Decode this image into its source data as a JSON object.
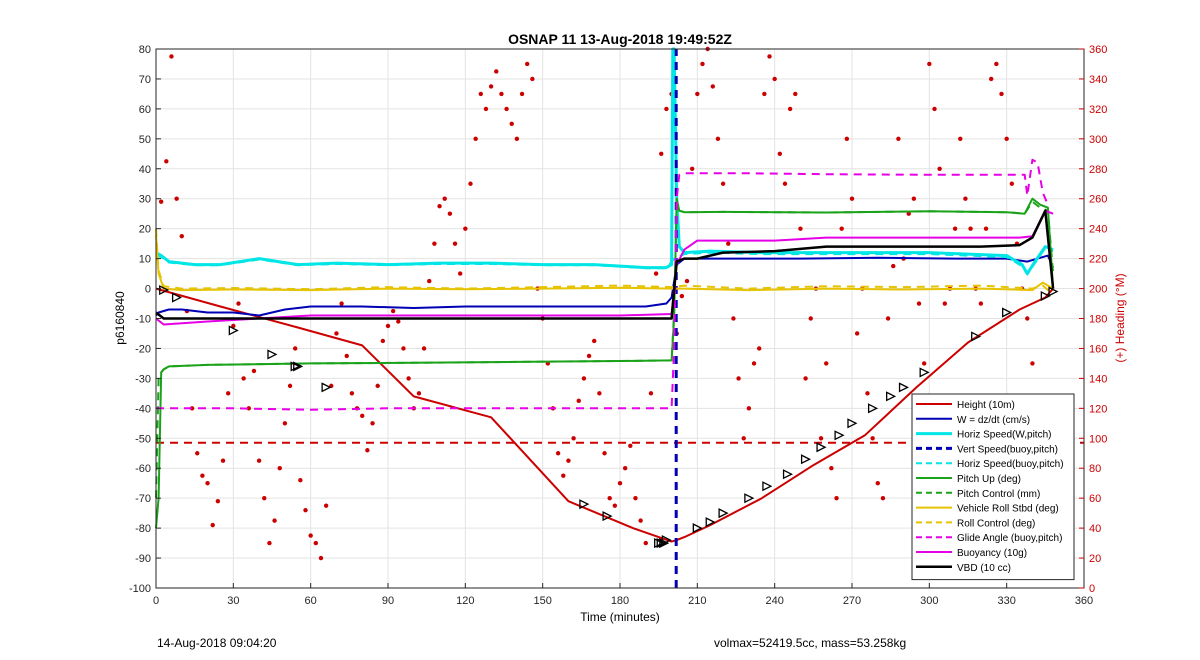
{
  "chart_data": {
    "type": "line",
    "title": "OSNAP 11 13-Aug-2018 19:49:52Z",
    "xlabel": "Time (minutes)",
    "ylabel_left": "p6160840",
    "ylabel_right": "(+) Heading (°M)",
    "xlim": [
      0,
      360
    ],
    "ylim_left": [
      -100,
      80
    ],
    "ylim_right": [
      0,
      360
    ],
    "x_ticks": [
      0,
      30,
      60,
      90,
      120,
      150,
      180,
      210,
      240,
      270,
      300,
      330,
      360
    ],
    "y_ticks_left": [
      -100,
      -90,
      -80,
      -70,
      -60,
      -50,
      -40,
      -30,
      -20,
      -10,
      0,
      10,
      20,
      30,
      40,
      50,
      60,
      70,
      80
    ],
    "y_ticks_right": [
      0,
      20,
      40,
      60,
      80,
      100,
      120,
      140,
      160,
      180,
      200,
      220,
      240,
      260,
      280,
      300,
      320,
      340,
      360
    ],
    "grid": true,
    "legend_position": "bottom-right",
    "series": [
      {
        "name": "Height (10m)",
        "color": "#cc0000",
        "style": "solid",
        "width": 2,
        "x": [
          0,
          25,
          55,
          80,
          100,
          130,
          160,
          185,
          200,
          202,
          205,
          215,
          235,
          255,
          275,
          295,
          315,
          335,
          345,
          348
        ],
        "y": [
          0,
          -6,
          -13,
          -19,
          -36,
          -43,
          -71,
          -80,
          -84.5,
          -84,
          -83,
          -79,
          -70,
          -59,
          -49,
          -33,
          -18,
          -7,
          -3,
          0
        ]
      },
      {
        "name": "W = dz/dt (cm/s)",
        "color": "#0000b4",
        "style": "solid",
        "width": 2,
        "x": [
          0,
          1,
          5,
          10,
          20,
          30,
          40,
          50,
          60,
          80,
          100,
          120,
          140,
          160,
          180,
          190,
          198,
          200,
          202,
          205,
          215,
          230,
          250,
          280,
          310,
          330,
          338,
          342,
          346,
          348
        ],
        "y": [
          -9,
          -8,
          -7,
          -7,
          -8,
          -8,
          -9,
          -7,
          -6,
          -6,
          -6.5,
          -6,
          -6,
          -6,
          -6,
          -6,
          -5,
          -3,
          8,
          10,
          10,
          10,
          10,
          10.3,
          10,
          10,
          9,
          10,
          11,
          7
        ]
      },
      {
        "name": "Horiz Speed(W,pitch)",
        "color": "#00e6e6",
        "style": "solid",
        "width": 3,
        "x": [
          0,
          2,
          5,
          15,
          25,
          40,
          55,
          70,
          90,
          110,
          130,
          150,
          170,
          190,
          198,
          200,
          200.5,
          201,
          202,
          203,
          205,
          215,
          235,
          255,
          275,
          300,
          330,
          336,
          338,
          341,
          345,
          348
        ],
        "y": [
          12,
          11,
          9,
          8,
          8,
          10,
          8,
          8.5,
          8,
          8.5,
          8.5,
          8,
          8,
          7,
          7,
          8,
          80,
          80,
          30,
          14,
          12,
          12.5,
          12,
          12,
          12,
          12,
          11,
          8,
          5,
          9,
          14,
          13
        ]
      },
      {
        "name": "Vert Speed(buoy,pitch)",
        "color": "#0000b4",
        "style": "dashed",
        "width": 3,
        "x": [
          201.8,
          201.8
        ],
        "y": [
          -100,
          80
        ]
      },
      {
        "name": "Horiz Speed(buoy,pitch)",
        "color": "#00e6e6",
        "style": "dashed",
        "width": 2,
        "x": [
          0,
          2,
          5,
          15,
          25,
          40,
          55,
          70,
          90,
          110,
          130,
          150,
          170,
          190,
          198,
          201,
          205,
          215,
          235,
          255,
          275,
          300,
          330,
          336,
          338,
          341,
          345,
          348
        ],
        "y": [
          11,
          10.5,
          8.7,
          7.8,
          7.8,
          9.7,
          7.8,
          8.2,
          7.8,
          8.2,
          8.2,
          7.8,
          7.8,
          6.8,
          6.8,
          10,
          11.5,
          12,
          11.5,
          11.5,
          11.5,
          11.5,
          10.5,
          7.5,
          4.7,
          8.5,
          13.5,
          12.5
        ]
      },
      {
        "name": "Pitch Up (deg)",
        "color": "#1aa31a",
        "style": "solid",
        "width": 2,
        "x": [
          0,
          1,
          2,
          3,
          5,
          20,
          60,
          100,
          140,
          180,
          200,
          201,
          202,
          203,
          205,
          220,
          260,
          300,
          330,
          337,
          340,
          343,
          346,
          348
        ],
        "y": [
          -80,
          -70,
          -28,
          -27,
          -26,
          -25.5,
          -25,
          -24.8,
          -24.5,
          -24.2,
          -24,
          -10,
          30,
          26,
          25.5,
          25.6,
          25.4,
          25.8,
          25.5,
          25,
          30,
          28,
          27,
          0
        ]
      },
      {
        "name": "Pitch Control (mm)",
        "color": "#1aa31a",
        "style": "dashed",
        "width": 2,
        "x": [
          0,
          1,
          2,
          3,
          5,
          20,
          60,
          100,
          140,
          180,
          200,
          201,
          202,
          203,
          205,
          220,
          260,
          300,
          330,
          337,
          340,
          343,
          346,
          348
        ],
        "y": [
          -70,
          -30,
          -28,
          -27,
          -26,
          -25.5,
          -25,
          -24.8,
          -24.5,
          -24.2,
          -24,
          -8,
          28,
          26,
          25.5,
          25.6,
          25.4,
          25.8,
          25.5,
          25,
          29,
          27,
          26,
          5
        ]
      },
      {
        "name": "Vehicle Roll Stbd (deg)",
        "color": "#e6c300",
        "style": "solid",
        "width": 2,
        "x": [
          0,
          1,
          3,
          10,
          30,
          60,
          90,
          120,
          150,
          180,
          200,
          205,
          230,
          260,
          290,
          320,
          340,
          344,
          348
        ],
        "y": [
          18,
          5,
          0,
          -0.5,
          -0.3,
          -0.5,
          0,
          -0.2,
          0,
          0.3,
          0,
          0,
          -0.5,
          0,
          -0.3,
          0,
          -0.5,
          2,
          0
        ]
      },
      {
        "name": "Roll Control (deg)",
        "color": "#e6c300",
        "style": "dashed",
        "width": 2,
        "x": [
          0,
          1,
          3,
          10,
          30,
          60,
          90,
          120,
          150,
          180,
          200,
          205,
          230,
          260,
          290,
          320,
          340,
          344,
          348
        ],
        "y": [
          20,
          6,
          0.8,
          0,
          0.2,
          -0.2,
          0.5,
          0,
          0.5,
          1,
          0.5,
          1,
          0,
          0.8,
          0.5,
          1,
          0,
          1,
          -2
        ]
      },
      {
        "name": "Glide Angle (buoy,pitch)",
        "color": "#e600e6",
        "style": "dashed",
        "width": 2,
        "x": [
          0,
          3,
          30,
          60,
          90,
          120,
          150,
          180,
          195,
          200,
          201,
          202,
          203,
          205,
          230,
          260,
          300,
          330,
          337,
          338,
          340,
          342,
          344,
          346
        ],
        "y": [
          -40,
          -40,
          -40,
          -40.5,
          -40,
          -40,
          -40,
          -40,
          -40,
          -40,
          -20,
          30,
          38,
          38.5,
          38.5,
          38.2,
          38,
          38,
          38,
          31,
          43,
          42,
          32,
          28
        ]
      },
      {
        "name": "Buoyancy (10g)",
        "color": "#e600e6",
        "style": "solid",
        "width": 2,
        "x": [
          0,
          3,
          20,
          60,
          100,
          140,
          180,
          200,
          202,
          205,
          210,
          220,
          240,
          260,
          280,
          300,
          320,
          335,
          340,
          345,
          348
        ],
        "y": [
          -10,
          -12,
          -11,
          -9,
          -9,
          -9,
          -9,
          -8.5,
          8,
          13,
          16,
          16,
          16,
          17,
          17,
          17,
          17,
          17,
          17.5,
          26,
          25
        ]
      },
      {
        "name": "VBD (10 cc)",
        "color": "#000000",
        "style": "solid",
        "width": 2.5,
        "x": [
          0,
          3,
          30,
          60,
          100,
          140,
          180,
          200,
          202,
          205,
          210,
          220,
          240,
          260,
          280,
          300,
          320,
          335,
          340,
          345,
          348
        ],
        "y": [
          -8,
          -10,
          -10,
          -10,
          -10,
          -10,
          -10,
          -10,
          9,
          10,
          10,
          12,
          12.5,
          14,
          14,
          14,
          14,
          14.5,
          17,
          26,
          0
        ]
      }
    ],
    "reference_lines": [
      {
        "axis": "y",
        "value": -51.5,
        "color": "#cc0000",
        "style": "dashed"
      }
    ],
    "heading_scatter": {
      "axis": "right",
      "color": "#cc0000",
      "x": [
        2,
        4,
        6,
        8,
        10,
        12,
        14,
        16,
        18,
        20,
        22,
        24,
        26,
        28,
        30,
        32,
        34,
        36,
        38,
        40,
        42,
        44,
        46,
        48,
        50,
        52,
        54,
        56,
        58,
        60,
        62,
        64,
        66,
        68,
        70,
        72,
        74,
        76,
        78,
        80,
        82,
        84,
        86,
        88,
        90,
        92,
        94,
        96,
        98,
        100,
        102,
        104,
        106,
        108,
        110,
        112,
        114,
        116,
        118,
        120,
        122,
        124,
        126,
        128,
        130,
        132,
        134,
        136,
        138,
        140,
        142,
        144,
        146,
        148,
        150,
        152,
        154,
        156,
        158,
        160,
        162,
        164,
        166,
        168,
        170,
        172,
        174,
        176,
        178,
        180,
        182,
        184,
        186,
        188,
        190,
        192,
        194,
        196,
        198,
        200,
        202,
        204,
        206,
        208,
        210,
        212,
        214,
        216,
        218,
        220,
        222,
        224,
        226,
        228,
        230,
        232,
        234,
        236,
        238,
        240,
        242,
        244,
        246,
        248,
        250,
        252,
        254,
        256,
        258,
        260,
        262,
        264,
        266,
        268,
        270,
        272,
        274,
        276,
        278,
        280,
        282,
        284,
        286,
        288,
        290,
        292,
        294,
        296,
        298,
        300,
        302,
        304,
        306,
        308,
        310,
        312,
        314,
        316,
        318,
        320,
        322,
        324,
        326,
        328,
        330,
        332,
        334,
        336,
        338,
        340,
        342,
        344,
        346
      ],
      "y": [
        258,
        285,
        355,
        260,
        235,
        185,
        120,
        90,
        75,
        70,
        42,
        58,
        85,
        130,
        175,
        190,
        140,
        120,
        145,
        85,
        60,
        30,
        45,
        80,
        110,
        135,
        160,
        72,
        52,
        35,
        30,
        20,
        55,
        135,
        170,
        190,
        155,
        130,
        120,
        115,
        92,
        110,
        135,
        165,
        175,
        185,
        178,
        160,
        140,
        120,
        130,
        160,
        205,
        230,
        255,
        260,
        250,
        230,
        210,
        240,
        270,
        300,
        330,
        320,
        335,
        345,
        330,
        320,
        310,
        300,
        330,
        350,
        340,
        200,
        180,
        150,
        120,
        90,
        75,
        85,
        100,
        125,
        140,
        155,
        165,
        130,
        90,
        60,
        55,
        70,
        80,
        95,
        60,
        45,
        30,
        130,
        210,
        290,
        320,
        330,
        170,
        195,
        205,
        280,
        330,
        350,
        360,
        335,
        300,
        270,
        230,
        180,
        140,
        100,
        120,
        150,
        160,
        330,
        355,
        340,
        290,
        270,
        320,
        330,
        240,
        140,
        180,
        200,
        100,
        150,
        80,
        60,
        240,
        300,
        260,
        170,
        200,
        130,
        100,
        70,
        60,
        180,
        215,
        300,
        220,
        250,
        260,
        190,
        150,
        350,
        320,
        280,
        190,
        200,
        240,
        300,
        260,
        240,
        200,
        190,
        240,
        340,
        350,
        330,
        300,
        270,
        230,
        200,
        180,
        150,
        120,
        90,
        60
      ]
    },
    "triangle_markers": {
      "axis": "left",
      "color": "#000000",
      "x": [
        3,
        8,
        30,
        45,
        54,
        55,
        66,
        166,
        175,
        195,
        196,
        197,
        198,
        210,
        215,
        220,
        230,
        237,
        245,
        252,
        258,
        265,
        270,
        278,
        285,
        290,
        298,
        318,
        330,
        345,
        348
      ],
      "y": [
        -0.5,
        -3,
        -14,
        -22,
        -26,
        -26,
        -33,
        -72,
        -76,
        -85,
        -85,
        -85,
        -84,
        -80,
        -78,
        -75,
        -70,
        -66,
        -62,
        -57,
        -53,
        -49,
        -45,
        -40,
        -36,
        -33,
        -28,
        -16,
        -8,
        -2.5,
        -1
      ]
    }
  },
  "footer": {
    "timestamp": "14-Aug-2018 09:04:20",
    "stats": "volmax=52419.5cc, mass=53.258kg"
  }
}
